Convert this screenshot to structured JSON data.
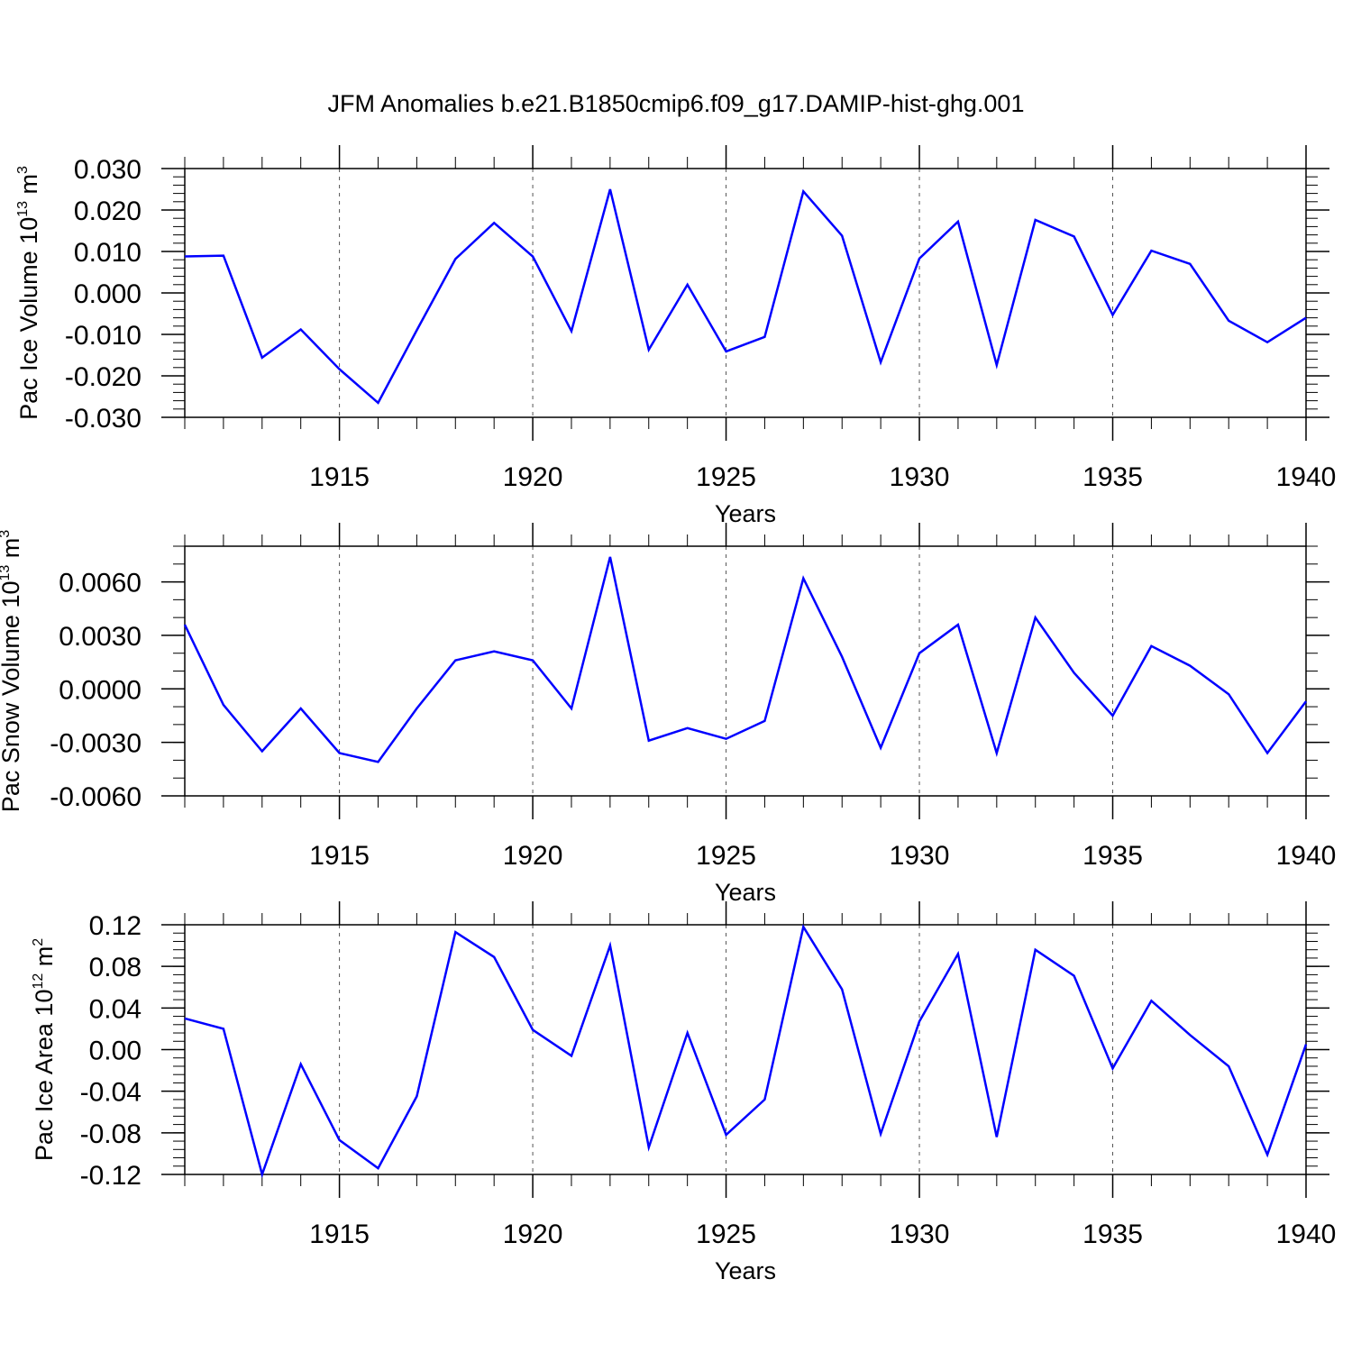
{
  "title": "JFM Anomalies b.e21.B1850cmip6.f09_g17.DAMIP-hist-ghg.001",
  "colors": {
    "series": "#0000ff",
    "axis": "#000000",
    "grid": "#555555"
  },
  "chart_data": [
    {
      "type": "line",
      "name": "ice-volume",
      "ylabel_main": "Pac Ice Volume 10",
      "ylabel_exp": "13",
      "ylabel_unit": " m",
      "ylabel_unit_exp": "3",
      "xlabel": "Years",
      "xlim": [
        1911,
        1940
      ],
      "ylim": [
        -0.03,
        0.03
      ],
      "xticks": [
        1915,
        1920,
        1925,
        1930,
        1935,
        1940
      ],
      "xtick_labels": [
        "1915",
        "1920",
        "1925",
        "1930",
        "1935",
        "1940"
      ],
      "yticks": [
        -0.03,
        -0.02,
        -0.01,
        0.0,
        0.01,
        0.02,
        0.03
      ],
      "ytick_labels": [
        "-0.030",
        "-0.020",
        "-0.010",
        "0.000",
        "0.010",
        "0.020",
        "0.030"
      ],
      "yminor_step": 0.002,
      "x": [
        1911,
        1912,
        1913,
        1914,
        1915,
        1916,
        1917,
        1918,
        1919,
        1920,
        1921,
        1922,
        1923,
        1924,
        1925,
        1926,
        1927,
        1928,
        1929,
        1930,
        1931,
        1932,
        1933,
        1934,
        1935,
        1936,
        1937,
        1938,
        1939,
        1940
      ],
      "values": [
        0.0088,
        0.009,
        -0.0156,
        -0.0088,
        -0.0184,
        -0.0265,
        -0.009,
        0.0082,
        0.0169,
        0.0088,
        -0.0092,
        0.025,
        -0.0137,
        0.002,
        -0.0141,
        -0.0106,
        0.0245,
        0.0138,
        -0.0167,
        0.0083,
        0.0172,
        -0.0174,
        0.0176,
        0.0136,
        -0.0053,
        0.0102,
        0.007,
        -0.0067,
        -0.0119,
        -0.006
      ]
    },
    {
      "type": "line",
      "name": "snow-volume",
      "ylabel_main": "Pac Snow Volume 10",
      "ylabel_exp": "13",
      "ylabel_unit": " m",
      "ylabel_unit_exp": "3",
      "xlabel": "Years",
      "xlim": [
        1911,
        1940
      ],
      "ylim": [
        -0.006,
        0.008
      ],
      "xticks": [
        1915,
        1920,
        1925,
        1930,
        1935,
        1940
      ],
      "xtick_labels": [
        "1915",
        "1920",
        "1925",
        "1930",
        "1935",
        "1940"
      ],
      "yticks": [
        -0.006,
        -0.003,
        0.0,
        0.003,
        0.006
      ],
      "ytick_labels": [
        "-0.0060",
        "-0.0030",
        "0.0000",
        "0.0030",
        "0.0060"
      ],
      "yminor_step": 0.001,
      "x": [
        1911,
        1912,
        1913,
        1914,
        1915,
        1916,
        1917,
        1918,
        1919,
        1920,
        1921,
        1922,
        1923,
        1924,
        1925,
        1926,
        1927,
        1928,
        1929,
        1930,
        1931,
        1932,
        1933,
        1934,
        1935,
        1936,
        1937,
        1938,
        1939,
        1940
      ],
      "values": [
        0.0036,
        -0.0009,
        -0.0035,
        -0.0011,
        -0.0036,
        -0.0041,
        -0.0011,
        0.0016,
        0.0021,
        0.0016,
        -0.0011,
        0.0074,
        -0.0029,
        -0.0022,
        -0.0028,
        -0.0018,
        0.0062,
        0.0018,
        -0.0033,
        0.002,
        0.0036,
        -0.0036,
        0.004,
        0.0009,
        -0.0015,
        0.0024,
        0.0013,
        -0.0003,
        -0.0036,
        -0.0007
      ]
    },
    {
      "type": "line",
      "name": "ice-area",
      "ylabel_main": "Pac Ice Area 10",
      "ylabel_exp": "12",
      "ylabel_unit": " m",
      "ylabel_unit_exp": "2",
      "xlabel": "Years",
      "xlim": [
        1911,
        1940
      ],
      "ylim": [
        -0.12,
        0.12
      ],
      "xticks": [
        1915,
        1920,
        1925,
        1930,
        1935,
        1940
      ],
      "xtick_labels": [
        "1915",
        "1920",
        "1925",
        "1930",
        "1935",
        "1940"
      ],
      "yticks": [
        -0.12,
        -0.08,
        -0.04,
        0.0,
        0.04,
        0.08,
        0.12
      ],
      "ytick_labels": [
        "-0.12",
        "-0.08",
        "-0.04",
        "0.00",
        "0.04",
        "0.08",
        "0.12"
      ],
      "yminor_step": 0.008,
      "x": [
        1911,
        1912,
        1913,
        1914,
        1915,
        1916,
        1917,
        1918,
        1919,
        1920,
        1921,
        1922,
        1923,
        1924,
        1925,
        1926,
        1927,
        1928,
        1929,
        1930,
        1931,
        1932,
        1933,
        1934,
        1935,
        1936,
        1937,
        1938,
        1939,
        1940
      ],
      "values": [
        0.03,
        0.02,
        -0.12,
        -0.014,
        -0.087,
        -0.114,
        -0.045,
        0.113,
        0.089,
        0.019,
        -0.006,
        0.1,
        -0.094,
        0.016,
        -0.082,
        -0.048,
        0.118,
        0.058,
        -0.081,
        0.027,
        0.092,
        -0.084,
        0.096,
        0.071,
        -0.018,
        0.047,
        0.014,
        -0.016,
        -0.101,
        0.005
      ]
    }
  ]
}
